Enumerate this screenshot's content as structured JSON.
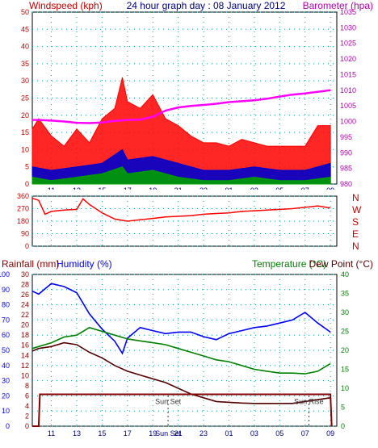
{
  "header": {
    "left_title": "Windspeed (kph)",
    "center_title": "24 hour graph day : 08 January 2012",
    "right_title": "Barometer (hpa)"
  },
  "lower_header": {
    "rain_label": "Rainfall (mm)",
    "humidity_label": "Humidity (%)",
    "temp_label": "Temperature (°C)",
    "dew_label": "Dew Point (°C)"
  },
  "compass": [
    "N",
    "W",
    "S",
    "E",
    "N"
  ],
  "annotations": {
    "sunset": "Sun Set",
    "sunrise": "Sun Rise"
  },
  "colors": {
    "wind": "#ff0000",
    "gust_avg": "#0000cc",
    "wind_low": "#00a000",
    "barometer": "#ff00ff",
    "direction": "#ff0000",
    "humidity": "#0000ff",
    "temperature": "#008000",
    "dewpoint": "#550000",
    "rain": "#880000",
    "grid": "#00a0a0",
    "left_axis_text": "#c00000",
    "right_axis_text": "#b000b0"
  },
  "chart_data": [
    {
      "type": "line",
      "title": "24 hour graph day : 08 January 2012",
      "x_ticks": [
        "11",
        "13",
        "15",
        "17",
        "19",
        "21",
        "23",
        "01",
        "03",
        "05",
        "07",
        "09"
      ],
      "left_axis": {
        "label": "Windspeed (kph)",
        "ticks": [
          "0",
          "5",
          "10",
          "15",
          "20",
          "25",
          "30",
          "35",
          "40",
          "45",
          "50"
        ],
        "ylim": [
          0,
          50
        ]
      },
      "right_axis": {
        "label": "Barometer (hpa)",
        "ticks": [
          "980",
          "985",
          "990",
          "995",
          "1000",
          "1005",
          "1010",
          "1015",
          "1020",
          "1025",
          "1030",
          "1035"
        ],
        "ylim": [
          980,
          1035
        ]
      },
      "series": [
        {
          "key": "wind",
          "x": [
            9.5,
            10,
            11,
            12,
            13,
            14,
            15,
            16,
            16.6,
            17,
            18,
            19,
            20,
            21,
            22,
            23,
            24,
            25,
            26,
            27,
            28,
            29,
            30,
            31,
            32,
            33
          ],
          "values": [
            16,
            19,
            14,
            11,
            16,
            12,
            19,
            22,
            31,
            24,
            22,
            26,
            19,
            17,
            14,
            12,
            12,
            11,
            13,
            12,
            11,
            11,
            11,
            11,
            17,
            17
          ]
        },
        {
          "key": "gust_avg",
          "x": [
            9.5,
            11,
            13,
            15,
            16.6,
            17,
            19,
            21,
            23,
            25,
            27,
            29,
            31,
            33
          ],
          "values": [
            5,
            4,
            5,
            6,
            10,
            7,
            8,
            6,
            4,
            4,
            5,
            4,
            4,
            6
          ]
        },
        {
          "key": "wind_low",
          "x": [
            9.5,
            11,
            13,
            15,
            16.6,
            17,
            19,
            21,
            23,
            25,
            27,
            29,
            31,
            33
          ],
          "values": [
            2,
            1,
            2,
            3,
            5,
            3,
            4,
            2,
            1,
            1,
            2,
            1,
            1,
            2
          ]
        },
        {
          "key": "barometer",
          "x": [
            9.5,
            10,
            11,
            12,
            13,
            14,
            15,
            16,
            17,
            18,
            19,
            20,
            21,
            22,
            23,
            24,
            25,
            26,
            27,
            28,
            29,
            30,
            31,
            32,
            33
          ],
          "values": [
            1000.5,
            1000.5,
            1000.3,
            1000,
            999.6,
            999.5,
            999.7,
            1000.2,
            1000.5,
            1000.6,
            1001.5,
            1003.5,
            1004.5,
            1005,
            1005.3,
            1005.7,
            1006.2,
            1006.5,
            1006.8,
            1007.3,
            1008,
            1008.6,
            1009,
            1009.5,
            1010
          ]
        }
      ]
    },
    {
      "type": "scatter",
      "x_ticks": [
        "11",
        "13",
        "15",
        "17",
        "19",
        "21",
        "23",
        "01",
        "03",
        "05",
        "07",
        "09"
      ],
      "left_axis": {
        "ticks": [
          "0",
          "90",
          "180",
          "270",
          "360"
        ],
        "ylim": [
          0,
          360
        ]
      },
      "series": [
        {
          "key": "direction",
          "x": [
            9.5,
            10,
            10.5,
            11,
            12,
            13,
            13.5,
            14,
            15,
            16,
            17,
            18,
            19,
            20,
            21,
            22,
            23,
            24,
            25,
            26,
            27,
            28,
            29,
            30,
            31,
            32,
            33
          ],
          "values": [
            345,
            330,
            230,
            250,
            260,
            265,
            340,
            300,
            240,
            195,
            180,
            190,
            200,
            210,
            215,
            220,
            230,
            235,
            240,
            250,
            255,
            260,
            265,
            270,
            280,
            290,
            275
          ]
        }
      ]
    },
    {
      "type": "line",
      "x_ticks": [
        "11",
        "13",
        "15",
        "17",
        "19",
        "Sun Set",
        "21",
        "23",
        "01",
        "03",
        "05",
        "07",
        "09"
      ],
      "rain_axis": {
        "ticks": [
          "0",
          "2",
          "4",
          "6",
          "8",
          "10",
          "12",
          "14",
          "16",
          "18",
          "20",
          "22",
          "24",
          "26",
          "28",
          "30"
        ],
        "ylim": [
          0,
          30
        ]
      },
      "humidity_axis": {
        "ticks": [
          "0",
          "10",
          "20",
          "30",
          "40",
          "50",
          "60",
          "70",
          "80",
          "90",
          "100"
        ],
        "ylim": [
          0,
          100
        ]
      },
      "temp_axis": {
        "ticks": [
          "0",
          "5",
          "10",
          "15",
          "20",
          "25",
          "30",
          "35",
          "40"
        ],
        "ylim": [
          0,
          40
        ]
      },
      "series": [
        {
          "key": "humidity",
          "x": [
            9.5,
            10,
            11,
            12,
            13,
            14,
            15,
            16,
            16.6,
            17,
            18,
            19,
            20,
            21,
            22,
            23,
            24,
            25,
            26,
            27,
            28,
            29,
            30,
            31,
            32,
            33
          ],
          "values": [
            89,
            87,
            94,
            92,
            88,
            74,
            64,
            56,
            48,
            58,
            65,
            63,
            61,
            62,
            62,
            59,
            57,
            61,
            63,
            65,
            66,
            68,
            70,
            75,
            68,
            62
          ]
        },
        {
          "key": "temperature",
          "x": [
            9.5,
            10,
            11,
            12,
            13,
            14,
            15,
            16,
            17,
            18,
            19,
            20,
            21,
            22,
            23,
            24,
            25,
            26,
            27,
            28,
            29,
            30,
            31,
            32,
            33
          ],
          "values": [
            20.5,
            21,
            22,
            23.5,
            24,
            26,
            25,
            24,
            23,
            22.5,
            22,
            21.5,
            20.5,
            19.5,
            18.5,
            17.5,
            17,
            16,
            15,
            14.5,
            14,
            14,
            13.8,
            14.5,
            16.5
          ]
        },
        {
          "key": "dewpoint",
          "x": [
            9.5,
            10,
            11,
            12,
            13,
            14,
            15,
            16,
            17,
            18,
            19,
            20,
            21,
            22,
            23,
            24,
            25,
            26,
            27,
            28,
            29,
            30,
            31,
            32,
            33
          ],
          "values": [
            19.8,
            20.5,
            21,
            22,
            21.5,
            19.5,
            18,
            16,
            14.5,
            13.5,
            12.5,
            11.5,
            10,
            8.5,
            7.5,
            6.5,
            6.3,
            6.1,
            6,
            6,
            6,
            6,
            6.5,
            7,
            7.5
          ]
        },
        {
          "key": "rain",
          "x": [
            9.5,
            10,
            10.1,
            33,
            33.1
          ],
          "values": [
            0,
            0,
            6.3,
            6.3,
            0
          ]
        }
      ],
      "sunset_x": 20.2,
      "sunrise_x": 31.3
    }
  ]
}
